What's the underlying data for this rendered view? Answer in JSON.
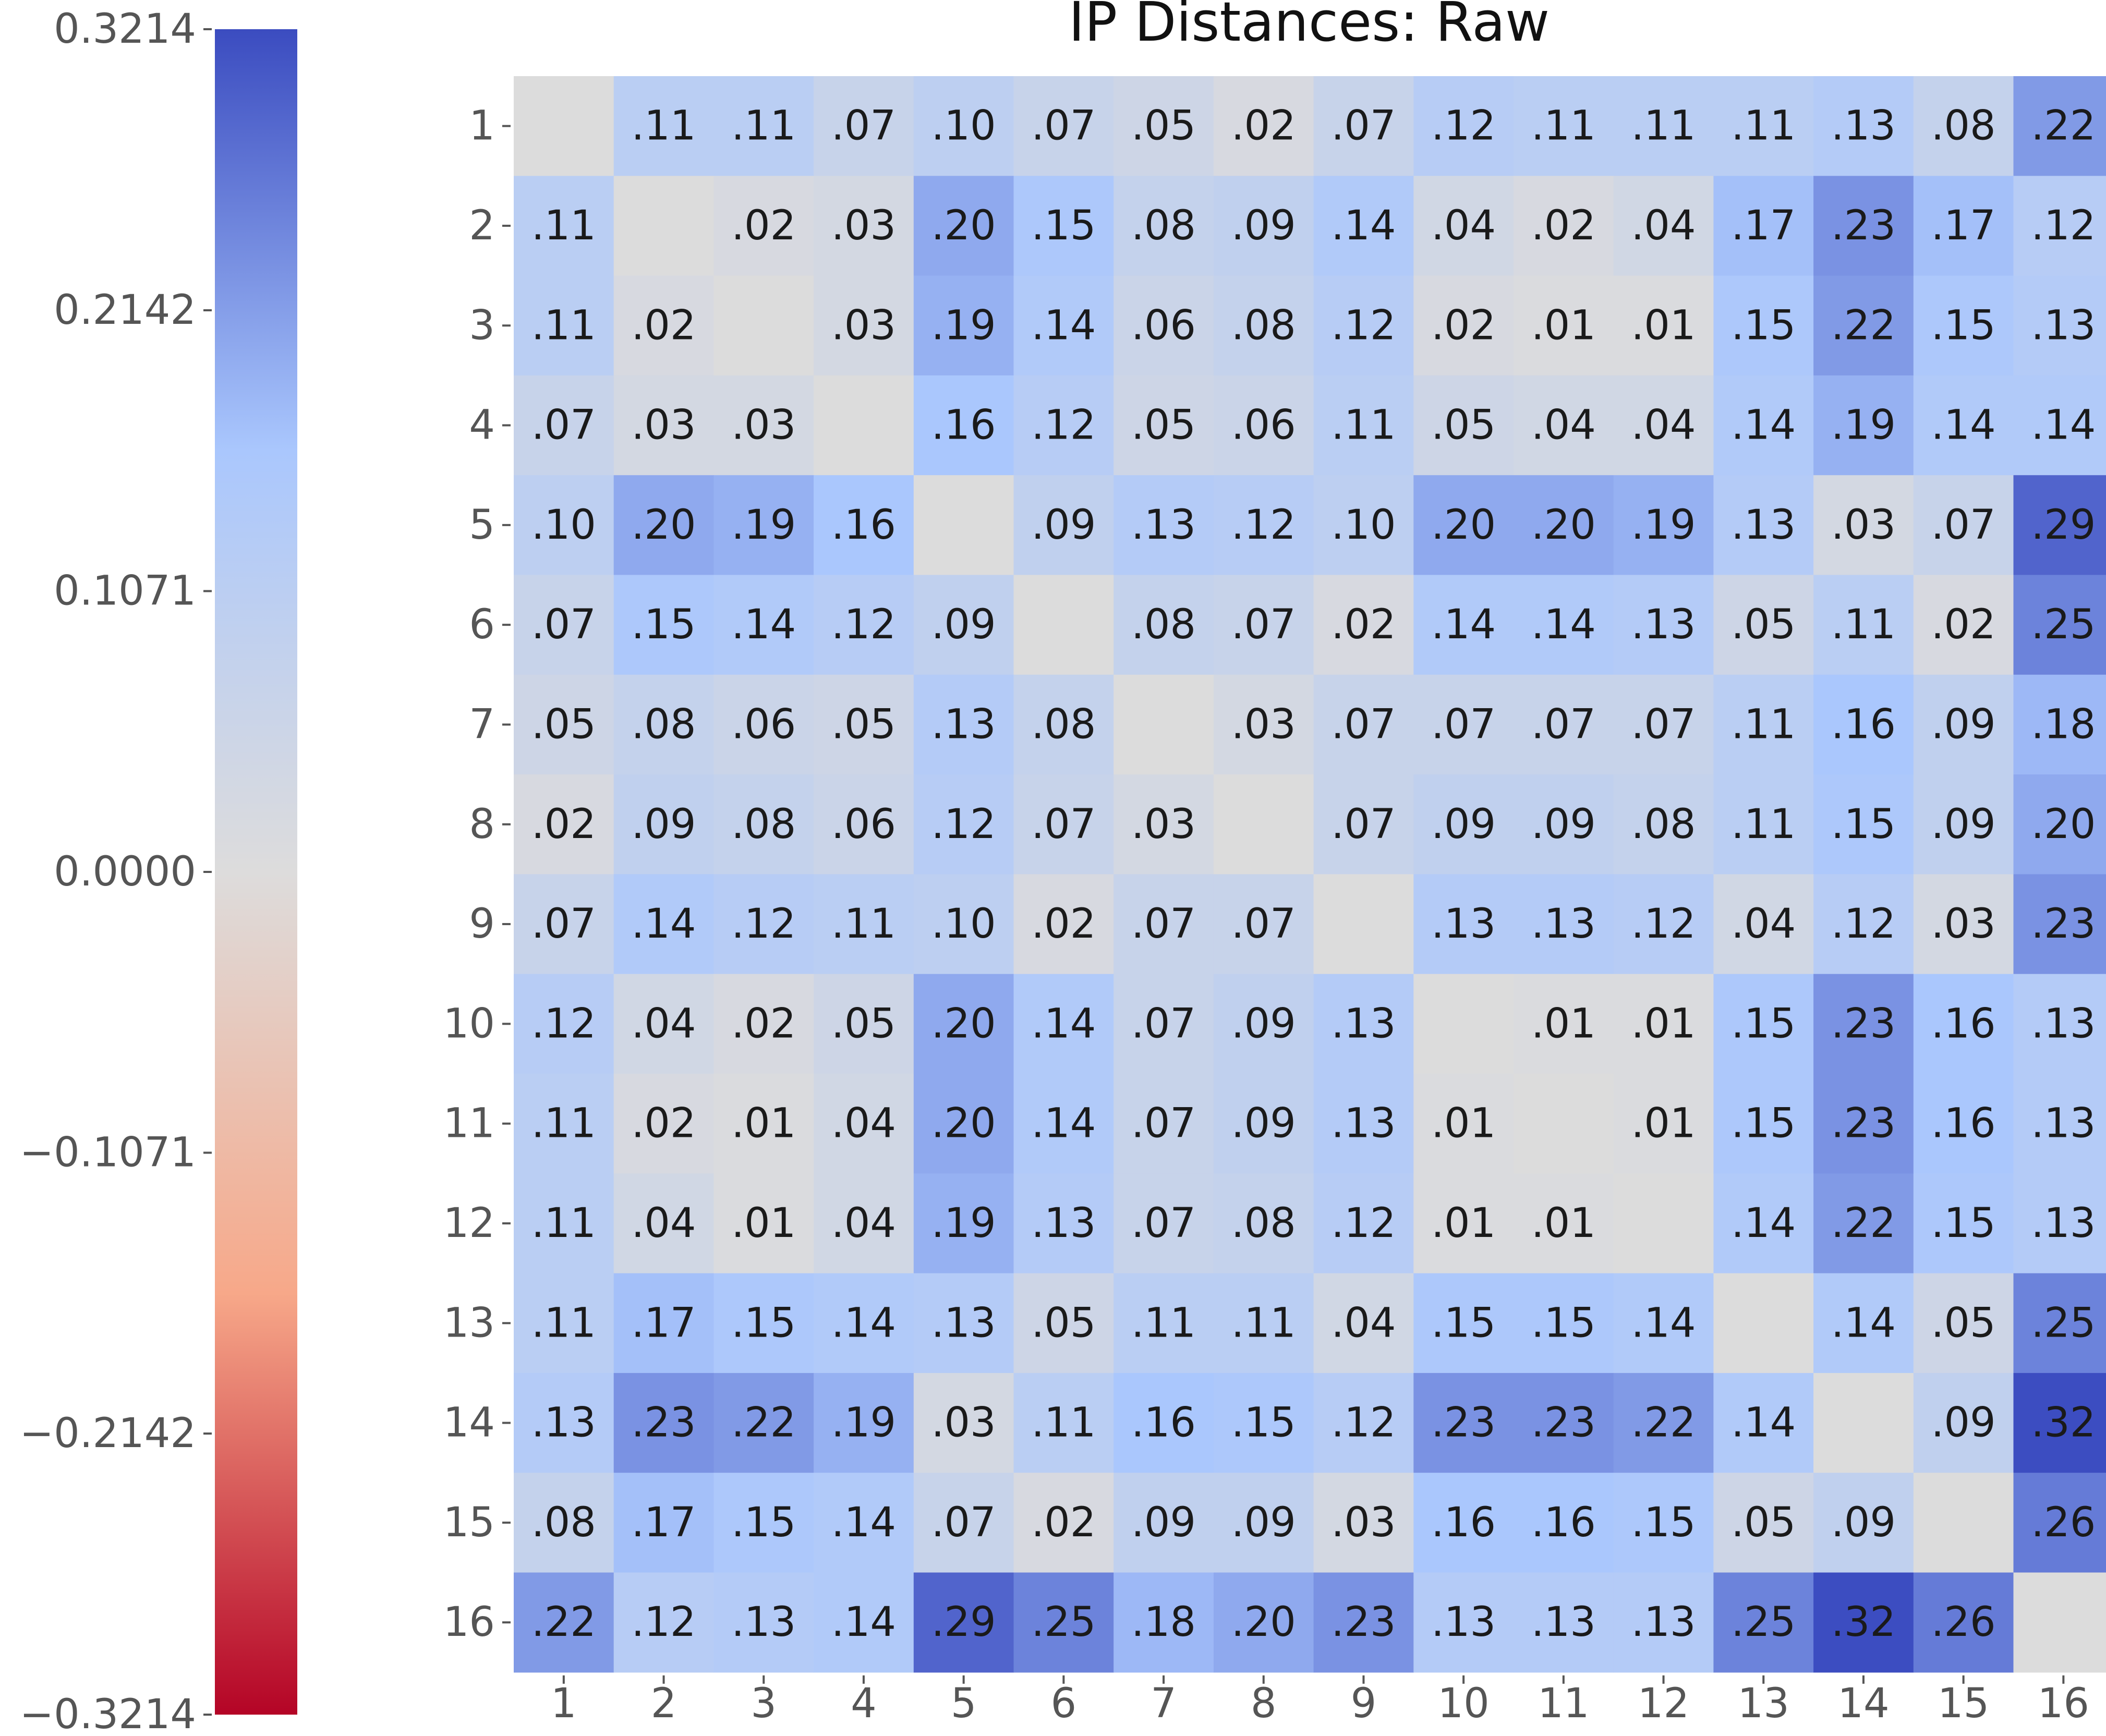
{
  "chart_data": {
    "type": "heatmap",
    "title": "IP Distances: Raw",
    "xlabel": "",
    "ylabel": "",
    "x_categories": [
      "1",
      "2",
      "3",
      "4",
      "5",
      "6",
      "7",
      "8",
      "9",
      "10",
      "11",
      "12",
      "13",
      "14",
      "15",
      "16"
    ],
    "y_categories": [
      "1",
      "2",
      "3",
      "4",
      "5",
      "6",
      "7",
      "8",
      "9",
      "10",
      "11",
      "12",
      "13",
      "14",
      "15",
      "16"
    ],
    "values": [
      [
        null,
        0.11,
        0.11,
        0.07,
        0.1,
        0.07,
        0.05,
        0.02,
        0.07,
        0.12,
        0.11,
        0.11,
        0.11,
        0.13,
        0.08,
        0.22
      ],
      [
        0.11,
        null,
        0.02,
        0.03,
        0.2,
        0.15,
        0.08,
        0.09,
        0.14,
        0.04,
        0.02,
        0.04,
        0.17,
        0.23,
        0.17,
        0.12
      ],
      [
        0.11,
        0.02,
        null,
        0.03,
        0.19,
        0.14,
        0.06,
        0.08,
        0.12,
        0.02,
        0.01,
        0.01,
        0.15,
        0.22,
        0.15,
        0.13
      ],
      [
        0.07,
        0.03,
        0.03,
        null,
        0.16,
        0.12,
        0.05,
        0.06,
        0.11,
        0.05,
        0.04,
        0.04,
        0.14,
        0.19,
        0.14,
        0.14
      ],
      [
        0.1,
        0.2,
        0.19,
        0.16,
        null,
        0.09,
        0.13,
        0.12,
        0.1,
        0.2,
        0.2,
        0.19,
        0.13,
        0.03,
        0.07,
        0.29
      ],
      [
        0.07,
        0.15,
        0.14,
        0.12,
        0.09,
        null,
        0.08,
        0.07,
        0.02,
        0.14,
        0.14,
        0.13,
        0.05,
        0.11,
        0.02,
        0.25
      ],
      [
        0.05,
        0.08,
        0.06,
        0.05,
        0.13,
        0.08,
        null,
        0.03,
        0.07,
        0.07,
        0.07,
        0.07,
        0.11,
        0.16,
        0.09,
        0.18
      ],
      [
        0.02,
        0.09,
        0.08,
        0.06,
        0.12,
        0.07,
        0.03,
        null,
        0.07,
        0.09,
        0.09,
        0.08,
        0.11,
        0.15,
        0.09,
        0.2
      ],
      [
        0.07,
        0.14,
        0.12,
        0.11,
        0.1,
        0.02,
        0.07,
        0.07,
        null,
        0.13,
        0.13,
        0.12,
        0.04,
        0.12,
        0.03,
        0.23
      ],
      [
        0.12,
        0.04,
        0.02,
        0.05,
        0.2,
        0.14,
        0.07,
        0.09,
        0.13,
        null,
        0.01,
        0.01,
        0.15,
        0.23,
        0.16,
        0.13
      ],
      [
        0.11,
        0.02,
        0.01,
        0.04,
        0.2,
        0.14,
        0.07,
        0.09,
        0.13,
        0.01,
        null,
        0.01,
        0.15,
        0.23,
        0.16,
        0.13
      ],
      [
        0.11,
        0.04,
        0.01,
        0.04,
        0.19,
        0.13,
        0.07,
        0.08,
        0.12,
        0.01,
        0.01,
        null,
        0.14,
        0.22,
        0.15,
        0.13
      ],
      [
        0.11,
        0.17,
        0.15,
        0.14,
        0.13,
        0.05,
        0.11,
        0.11,
        0.04,
        0.15,
        0.15,
        0.14,
        null,
        0.14,
        0.05,
        0.25
      ],
      [
        0.13,
        0.23,
        0.22,
        0.19,
        0.03,
        0.11,
        0.16,
        0.15,
        0.12,
        0.23,
        0.23,
        0.22,
        0.14,
        null,
        0.09,
        0.32
      ],
      [
        0.08,
        0.17,
        0.15,
        0.14,
        0.07,
        0.02,
        0.09,
        0.09,
        0.03,
        0.16,
        0.16,
        0.15,
        0.05,
        0.09,
        null,
        0.26
      ],
      [
        0.22,
        0.12,
        0.13,
        0.14,
        0.29,
        0.25,
        0.18,
        0.2,
        0.23,
        0.13,
        0.13,
        0.13,
        0.25,
        0.32,
        0.26,
        null
      ]
    ],
    "cell_labels": [
      [
        "",
        ".11",
        ".11",
        ".07",
        ".10",
        ".07",
        ".05",
        ".02",
        ".07",
        ".12",
        ".11",
        ".11",
        ".11",
        ".13",
        ".08",
        ".22"
      ],
      [
        ".11",
        "",
        ".02",
        ".03",
        ".20",
        ".15",
        ".08",
        ".09",
        ".14",
        ".04",
        ".02",
        ".04",
        ".17",
        ".23",
        ".17",
        ".12"
      ],
      [
        ".11",
        ".02",
        "",
        ".03",
        ".19",
        ".14",
        ".06",
        ".08",
        ".12",
        ".02",
        ".01",
        ".01",
        ".15",
        ".22",
        ".15",
        ".13"
      ],
      [
        ".07",
        ".03",
        ".03",
        "",
        ".16",
        ".12",
        ".05",
        ".06",
        ".11",
        ".05",
        ".04",
        ".04",
        ".14",
        ".19",
        ".14",
        ".14"
      ],
      [
        ".10",
        ".20",
        ".19",
        ".16",
        "",
        ".09",
        ".13",
        ".12",
        ".10",
        ".20",
        ".20",
        ".19",
        ".13",
        ".03",
        ".07",
        ".29"
      ],
      [
        ".07",
        ".15",
        ".14",
        ".12",
        ".09",
        "",
        ".08",
        ".07",
        ".02",
        ".14",
        ".14",
        ".13",
        ".05",
        ".11",
        ".02",
        ".25"
      ],
      [
        ".05",
        ".08",
        ".06",
        ".05",
        ".13",
        ".08",
        "",
        ".03",
        ".07",
        ".07",
        ".07",
        ".07",
        ".11",
        ".16",
        ".09",
        ".18"
      ],
      [
        ".02",
        ".09",
        ".08",
        ".06",
        ".12",
        ".07",
        ".03",
        "",
        ".07",
        ".09",
        ".09",
        ".08",
        ".11",
        ".15",
        ".09",
        ".20"
      ],
      [
        ".07",
        ".14",
        ".12",
        ".11",
        ".10",
        ".02",
        ".07",
        ".07",
        "",
        ".13",
        ".13",
        ".12",
        ".04",
        ".12",
        ".03",
        ".23"
      ],
      [
        ".12",
        ".04",
        ".02",
        ".05",
        ".20",
        ".14",
        ".07",
        ".09",
        ".13",
        "",
        ".01",
        ".01",
        ".15",
        ".23",
        ".16",
        ".13"
      ],
      [
        ".11",
        ".02",
        ".01",
        ".04",
        ".20",
        ".14",
        ".07",
        ".09",
        ".13",
        ".01",
        "",
        ".01",
        ".15",
        ".23",
        ".16",
        ".13"
      ],
      [
        ".11",
        ".04",
        ".01",
        ".04",
        ".19",
        ".13",
        ".07",
        ".08",
        ".12",
        ".01",
        ".01",
        "",
        ".14",
        ".22",
        ".15",
        ".13"
      ],
      [
        ".11",
        ".17",
        ".15",
        ".14",
        ".13",
        ".05",
        ".11",
        ".11",
        ".04",
        ".15",
        ".15",
        ".14",
        "",
        ".14",
        ".05",
        ".25"
      ],
      [
        ".13",
        ".23",
        ".22",
        ".19",
        ".03",
        ".11",
        ".16",
        ".15",
        ".12",
        ".23",
        ".23",
        ".22",
        ".14",
        "",
        ".09",
        ".32"
      ],
      [
        ".08",
        ".17",
        ".15",
        ".14",
        ".07",
        ".02",
        ".09",
        ".09",
        ".03",
        ".16",
        ".16",
        ".15",
        ".05",
        ".09",
        "",
        ".26"
      ],
      [
        ".22",
        ".12",
        ".13",
        ".14",
        ".29",
        ".25",
        ".18",
        ".20",
        ".23",
        ".13",
        ".13",
        ".13",
        ".25",
        ".32",
        ".26",
        ""
      ]
    ],
    "colormap": "coolwarm",
    "colormap_stops": [
      "#b40426",
      "#f7a889",
      "#dddcdc",
      "#aac7fd",
      "#3b4cc0"
    ],
    "diagonal_color": "#dcdcdc",
    "colorbar": {
      "min": -0.3214,
      "max": 0.3214,
      "tick_values": [
        0.3214,
        0.2142,
        0.1071,
        0.0,
        -0.1071,
        -0.2142,
        -0.3214
      ],
      "tick_labels": [
        "0.3214",
        "0.2142",
        "0.1071",
        "0.0000",
        "−0.1071",
        "−0.2142",
        "−0.3214"
      ],
      "placement": "left"
    },
    "grid": false,
    "legend": "none"
  }
}
